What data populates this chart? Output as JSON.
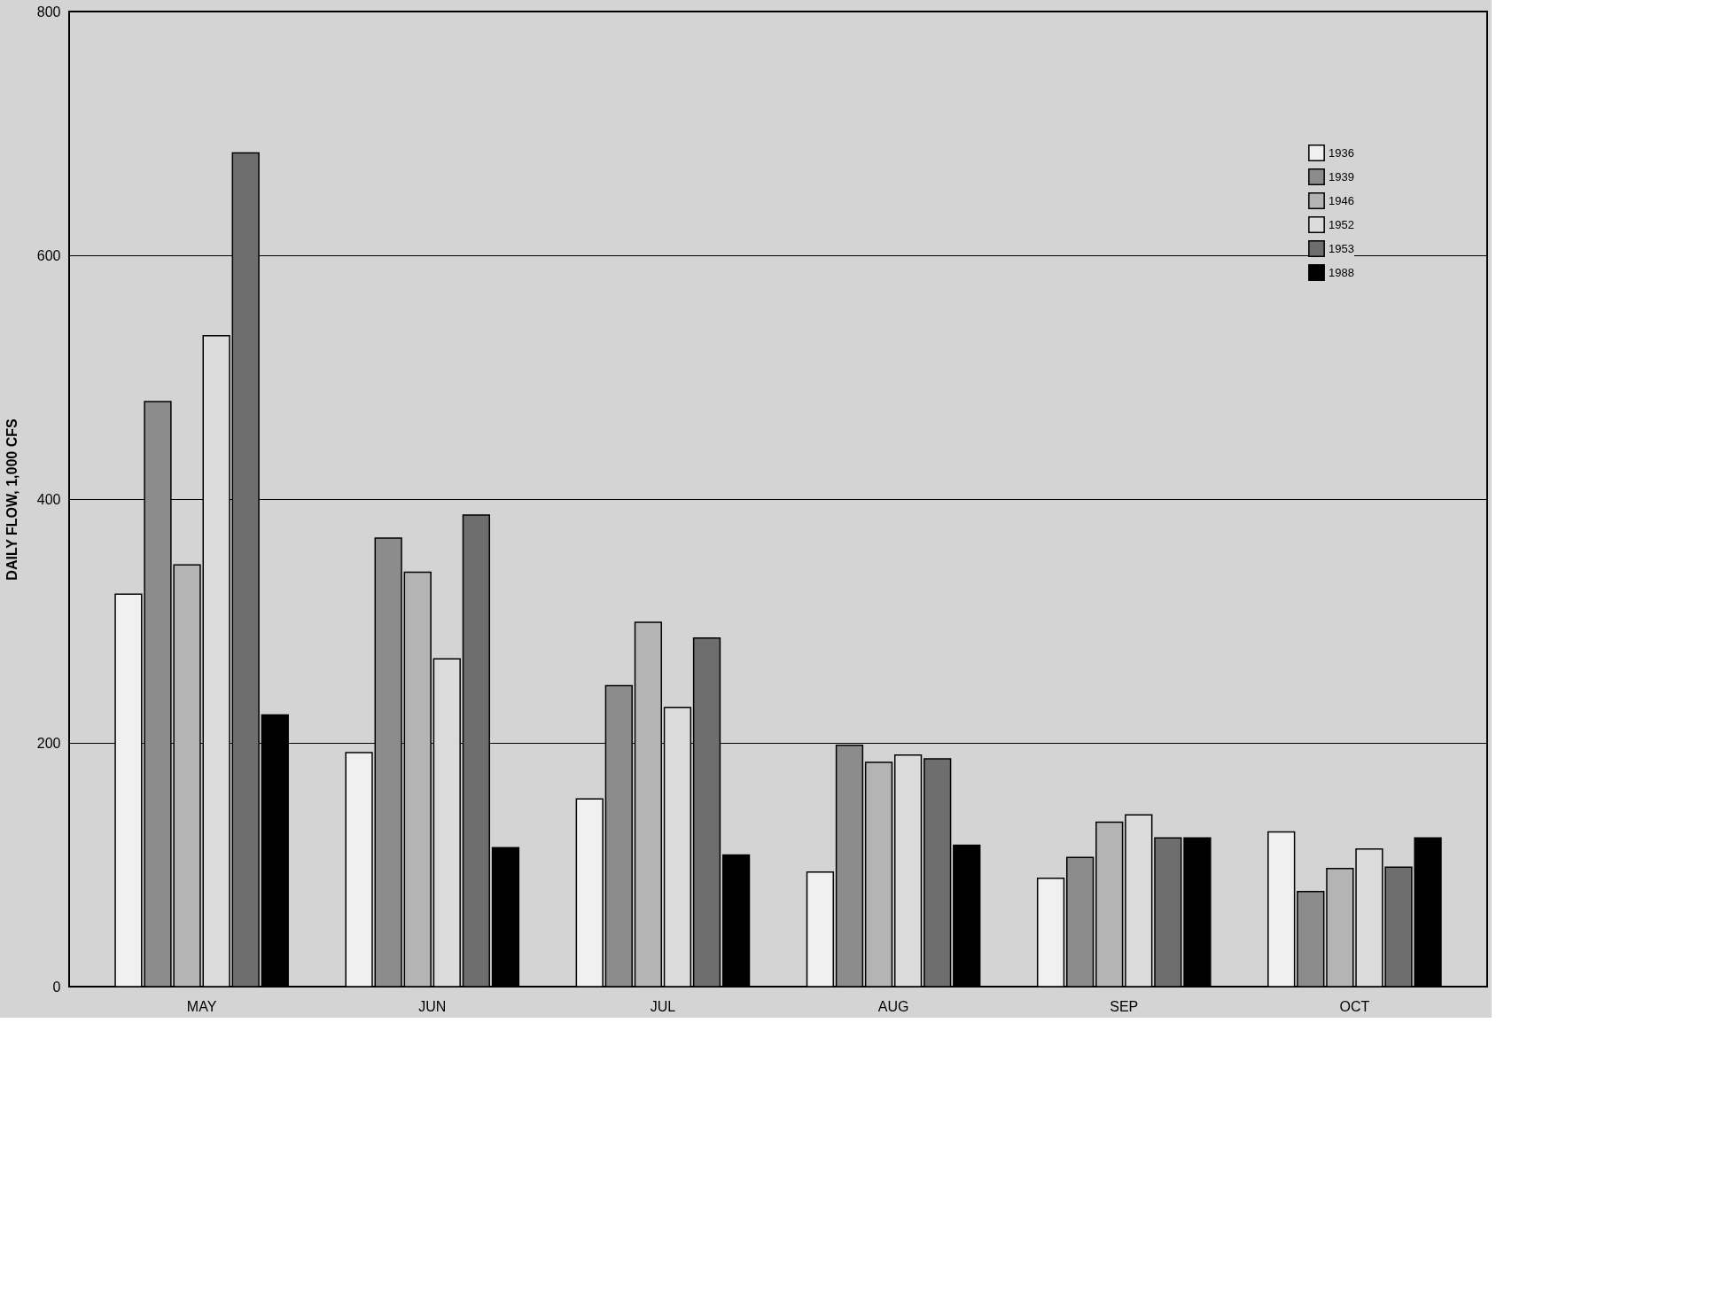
{
  "chart_data": {
    "type": "bar",
    "ylabel": "DAILY FLOW, 1,000 CFS",
    "categories": [
      "MAY",
      "JUN",
      "JUL",
      "AUG",
      "SEP",
      "OCT"
    ],
    "series": [
      {
        "name": "1936",
        "color": "#f0f0f0",
        "values": [
          322,
          192,
          154,
          94,
          89,
          127
        ]
      },
      {
        "name": "1939",
        "color": "#8c8c8c",
        "values": [
          480,
          368,
          247,
          198,
          106,
          78
        ]
      },
      {
        "name": "1946",
        "color": "#b4b4b4",
        "values": [
          346,
          340,
          299,
          184,
          135,
          97
        ]
      },
      {
        "name": "1952",
        "color": "#dcdcdc",
        "values": [
          534,
          269,
          229,
          190,
          141,
          113
        ]
      },
      {
        "name": "1953",
        "color": "#6e6e6e",
        "values": [
          684,
          387,
          286,
          187,
          122,
          98
        ]
      },
      {
        "name": "1988",
        "color": "#000000",
        "values": [
          223,
          114,
          108,
          116,
          122,
          122
        ]
      }
    ],
    "ylim": [
      0,
      800
    ],
    "yticks": [
      0,
      200,
      400,
      600,
      800
    ],
    "grid": "y",
    "legend": "top right"
  }
}
